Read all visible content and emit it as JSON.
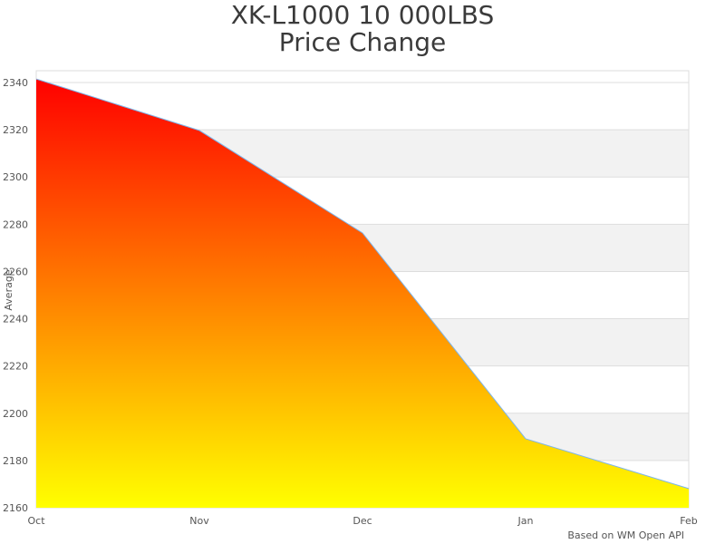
{
  "title_line1": "XK-L1000 10 000LBS",
  "title_line2": "Price Change",
  "credit": "Based on WM Open API",
  "colors": {
    "gradient_top": "#ff0000",
    "gradient_bottom": "#ffff00",
    "line": "#7cb5ec",
    "band": "#f2f2f2",
    "grid": "#dddddd"
  },
  "chart_data": {
    "type": "area",
    "title": "XK-L1000 10 000LBS Price Change",
    "xlabel": "",
    "ylabel": "Average",
    "categories": [
      "Oct",
      "Nov",
      "Dec",
      "Jan",
      "Feb"
    ],
    "series": [
      {
        "name": "Average",
        "values": [
          2341.5,
          2319.7,
          2276.3,
          2189.2,
          2168.1
        ]
      }
    ],
    "yticks": [
      2160,
      2180,
      2200,
      2220,
      2240,
      2260,
      2280,
      2300,
      2320,
      2340
    ],
    "ylim": [
      2160,
      2345
    ],
    "grid": true,
    "alternate_bands": true,
    "legend": "none"
  }
}
